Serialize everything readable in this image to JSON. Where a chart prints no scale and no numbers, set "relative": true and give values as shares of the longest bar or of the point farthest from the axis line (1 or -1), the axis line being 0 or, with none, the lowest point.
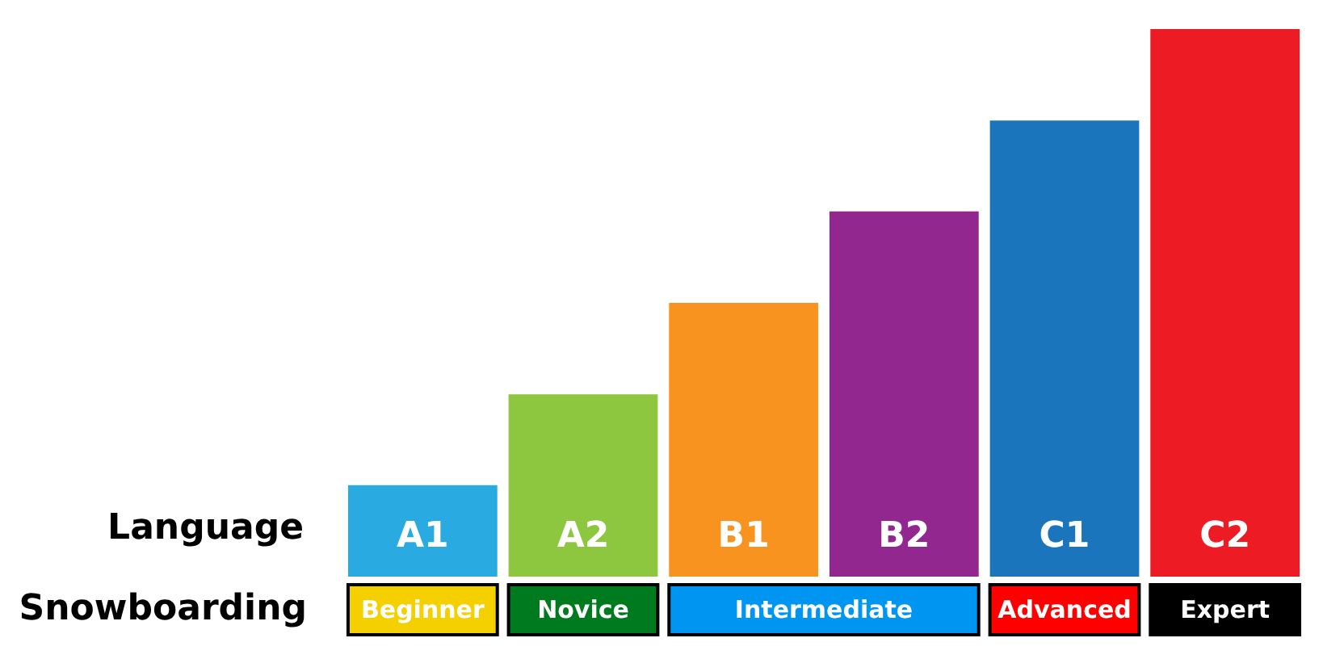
{
  "chart_data": {
    "type": "bar",
    "relative": true,
    "xlabel": "Language",
    "categories": [
      "A1",
      "A2",
      "B1",
      "B2",
      "C1",
      "C2"
    ],
    "values": [
      0.167,
      0.333,
      0.5,
      0.667,
      0.833,
      1
    ],
    "colors": [
      "#29abe2",
      "#8dc63f",
      "#f7931e",
      "#92278f",
      "#1b75bc",
      "#ed1c24"
    ],
    "annotations": [
      "Snowboarding",
      "Beginner",
      "Novice",
      "Intermediate",
      "Advanced",
      "Expert"
    ]
  }
}
